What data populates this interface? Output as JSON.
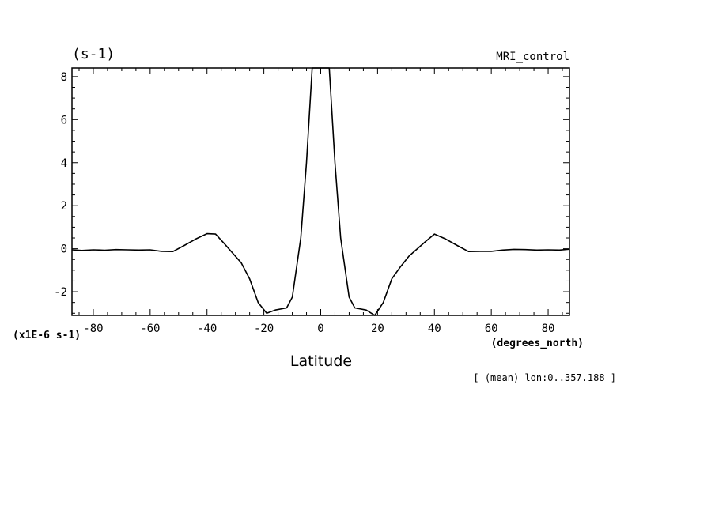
{
  "chart_data": {
    "type": "line",
    "unit_label": "(s-1)",
    "model_label": "MRI_control",
    "xlabel": "Latitude",
    "xunit_label": "(degrees_north)",
    "yscale_label": "(x1E-6 s-1)",
    "footnote": "[ (mean) lon:0..357.188 ]",
    "xlim": [
      -87.5,
      87.5
    ],
    "ylim": [
      -3.1,
      8.4
    ],
    "xticks": [
      -80,
      -60,
      -40,
      -20,
      0,
      20,
      40,
      60,
      80
    ],
    "xtick_labels": [
      "-80",
      "-60",
      "-40",
      "-20",
      "0",
      "20",
      "40",
      "60",
      "80"
    ],
    "yticks": [
      -2,
      0,
      2,
      4,
      6,
      8
    ],
    "ytick_labels": [
      "-2",
      "0",
      "2",
      "4",
      "6",
      "8"
    ],
    "grid": false,
    "series": [
      {
        "x": [
          -87.5,
          -84,
          -80,
          -76,
          -72,
          -68,
          -64,
          -60,
          -56,
          -52,
          -48,
          -44,
          -40,
          -37,
          -34,
          -31,
          -28,
          -25,
          -22,
          -19,
          -16,
          -12,
          -10,
          -7,
          -5,
          -3,
          0,
          3,
          5,
          7,
          10,
          12,
          16,
          19,
          22,
          25,
          28,
          31,
          34,
          37,
          40,
          44,
          48,
          52,
          56,
          60,
          64,
          68,
          72,
          76,
          80,
          84,
          87.5
        ],
        "y": [
          -0.05,
          -0.08,
          -0.05,
          -0.07,
          -0.04,
          -0.05,
          -0.06,
          -0.05,
          -0.12,
          -0.13,
          0.15,
          0.45,
          0.7,
          0.68,
          0.25,
          -0.2,
          -0.65,
          -1.4,
          -2.5,
          -3.0,
          -2.85,
          -2.75,
          -2.25,
          0.5,
          4.0,
          8.4,
          8.4,
          8.4,
          4.0,
          0.5,
          -2.25,
          -2.75,
          -2.85,
          -3.1,
          -2.5,
          -1.4,
          -0.85,
          -0.35,
          0.0,
          0.35,
          0.68,
          0.45,
          0.15,
          -0.13,
          -0.12,
          -0.12,
          -0.06,
          -0.03,
          -0.04,
          -0.06,
          -0.05,
          -0.06,
          -0.02
        ]
      }
    ]
  }
}
